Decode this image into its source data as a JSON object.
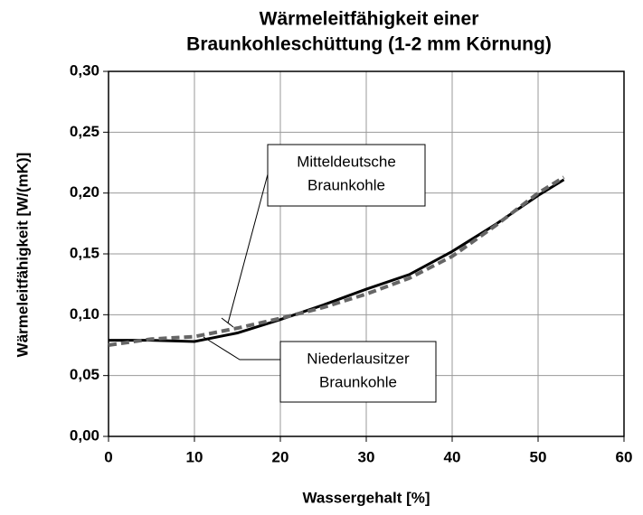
{
  "chart_data": {
    "type": "line",
    "title": [
      "Wärmeleitfähigkeit einer",
      "Braunkohleschüttung (1-2 mm Körnung)"
    ],
    "x_label": "Wassergehalt [%]",
    "y_label": "Wärmeleitfähigkeit [W/(mK)]",
    "x": [
      0,
      5,
      10,
      15,
      20,
      25,
      30,
      35,
      40,
      45,
      50,
      53
    ],
    "series": [
      {
        "name": [
          "Niederlausitzer",
          "Braunkohle"
        ],
        "color": "#000000",
        "dash": false,
        "values": [
          0.079,
          0.079,
          0.078,
          0.085,
          0.096,
          0.108,
          0.121,
          0.133,
          0.152,
          0.174,
          0.198,
          0.211
        ]
      },
      {
        "name": [
          "Mitteldeutsche",
          "Braunkohle"
        ],
        "color": "#666666",
        "dash": true,
        "values": [
          0.075,
          0.08,
          0.082,
          0.089,
          0.097,
          0.106,
          0.117,
          0.13,
          0.148,
          0.173,
          0.2,
          0.213
        ]
      }
    ],
    "xlim": [
      0,
      60
    ],
    "xticks": [
      0,
      10,
      20,
      30,
      40,
      50,
      60
    ],
    "ylim": [
      0,
      0.3
    ],
    "yticks": [
      {
        "value": 0,
        "label": "0,00"
      },
      {
        "value": 0.05,
        "label": "0,05"
      },
      {
        "value": 0.1,
        "label": "0,10"
      },
      {
        "value": 0.15,
        "label": "0,15"
      },
      {
        "value": 0.2,
        "label": "0,20"
      },
      {
        "value": 0.25,
        "label": "0,25"
      },
      {
        "value": 0.3,
        "label": "0,30"
      }
    ],
    "grid": true
  }
}
